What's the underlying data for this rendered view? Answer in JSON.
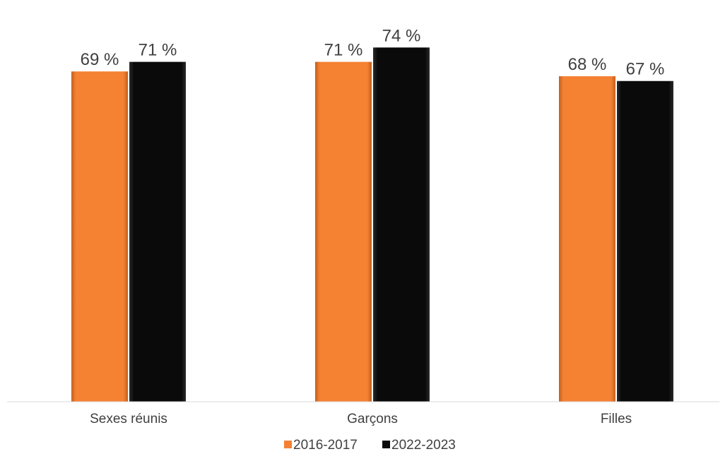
{
  "chart_data": {
    "type": "bar",
    "categories": [
      "Sexes réunis",
      "Garçons",
      "Filles"
    ],
    "series": [
      {
        "name": "2016-2017",
        "values": [
          69,
          71,
          68
        ],
        "labels": [
          "69 %",
          "71 %",
          "68 %"
        ],
        "color": "#F58233"
      },
      {
        "name": "2022-2023",
        "values": [
          71,
          74,
          67
        ],
        "labels": [
          "71 %",
          "74 %",
          "67 %"
        ],
        "color": "#0A0A0A"
      }
    ],
    "ylim": [
      0,
      80
    ],
    "grid": false,
    "legend_position": "bottom"
  }
}
